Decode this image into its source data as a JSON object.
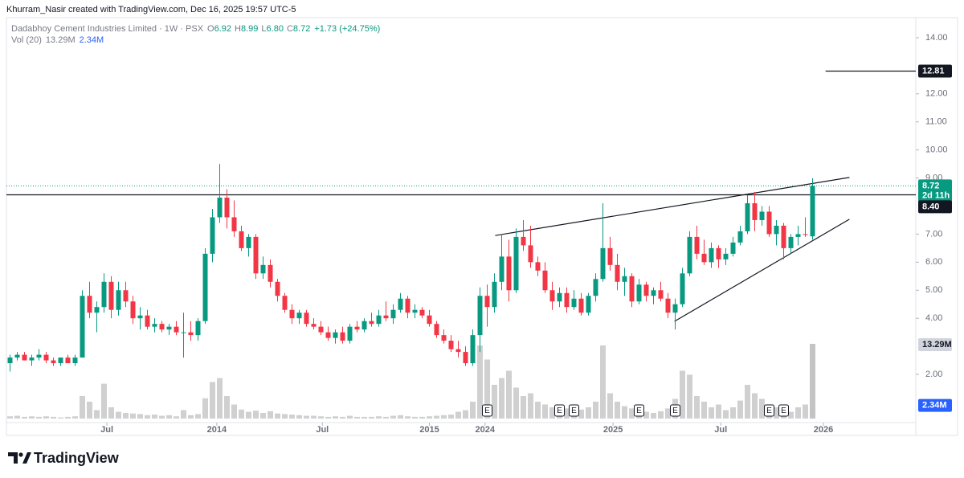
{
  "header": "Khurram_Nasir created with TradingView.com, Dec 16, 2025 19:57 UTC-5",
  "chart_data": {
    "type": "candlestick",
    "title": "Dadabhoy Cement Industries Limited · 1W · PSX",
    "legend": [
      {
        "key": "O",
        "value": "6.92"
      },
      {
        "key": "H",
        "value": "8.99"
      },
      {
        "key": "L",
        "value": "6.80"
      },
      {
        "key": "C",
        "value": "8.72"
      }
    ],
    "change": "+1.73 (+24.75%)",
    "up_color": "#089981",
    "down_color": "#f23645",
    "ohlc": [
      [
        2.4,
        2.7,
        2.1,
        2.6
      ],
      [
        2.6,
        2.8,
        2.5,
        2.7
      ],
      [
        2.7,
        2.8,
        2.5,
        2.5
      ],
      [
        2.5,
        2.7,
        2.3,
        2.6
      ],
      [
        2.6,
        2.9,
        2.5,
        2.7
      ],
      [
        2.7,
        2.8,
        2.4,
        2.5
      ],
      [
        2.5,
        2.6,
        2.3,
        2.4
      ],
      [
        2.4,
        2.6,
        2.3,
        2.6
      ],
      [
        2.6,
        2.7,
        2.4,
        2.4
      ],
      [
        2.4,
        2.7,
        2.3,
        2.6
      ],
      [
        2.6,
        5.0,
        2.6,
        4.8
      ],
      [
        4.8,
        5.3,
        4.0,
        4.2
      ],
      [
        4.2,
        4.6,
        3.5,
        4.4
      ],
      [
        4.4,
        5.6,
        4.2,
        5.3
      ],
      [
        5.3,
        5.5,
        4.0,
        4.3
      ],
      [
        4.3,
        5.3,
        4.1,
        5.0
      ],
      [
        5.0,
        5.3,
        4.4,
        4.6
      ],
      [
        4.6,
        4.8,
        3.8,
        4.0
      ],
      [
        4.0,
        4.4,
        3.6,
        4.1
      ],
      [
        4.1,
        4.3,
        3.6,
        3.7
      ],
      [
        3.7,
        4.0,
        3.5,
        3.8
      ],
      [
        3.8,
        3.9,
        3.5,
        3.6
      ],
      [
        3.6,
        3.8,
        3.4,
        3.7
      ],
      [
        3.7,
        3.9,
        3.4,
        3.5
      ],
      [
        3.5,
        4.2,
        2.6,
        3.5
      ],
      [
        3.5,
        3.9,
        3.2,
        3.4
      ],
      [
        3.4,
        4.0,
        3.2,
        3.9
      ],
      [
        3.9,
        6.5,
        3.8,
        6.3
      ],
      [
        6.3,
        7.9,
        6.0,
        7.6
      ],
      [
        7.6,
        9.5,
        7.4,
        8.3
      ],
      [
        8.3,
        8.6,
        7.2,
        7.6
      ],
      [
        7.6,
        8.2,
        6.9,
        7.1
      ],
      [
        7.1,
        7.3,
        6.4,
        6.5
      ],
      [
        6.5,
        7.0,
        6.2,
        6.9
      ],
      [
        6.9,
        7.0,
        5.4,
        5.6
      ],
      [
        5.6,
        6.2,
        5.4,
        5.9
      ],
      [
        5.9,
        6.1,
        5.1,
        5.3
      ],
      [
        5.3,
        5.4,
        4.6,
        4.8
      ],
      [
        4.8,
        4.9,
        4.2,
        4.3
      ],
      [
        4.3,
        4.5,
        3.8,
        4.0
      ],
      [
        4.0,
        4.3,
        3.8,
        4.2
      ],
      [
        4.2,
        4.3,
        3.7,
        3.8
      ],
      [
        3.8,
        4.0,
        3.6,
        3.7
      ],
      [
        3.7,
        3.9,
        3.4,
        3.5
      ],
      [
        3.5,
        3.7,
        3.2,
        3.3
      ],
      [
        3.3,
        3.6,
        3.1,
        3.5
      ],
      [
        3.5,
        3.7,
        3.1,
        3.2
      ],
      [
        3.2,
        3.8,
        3.1,
        3.7
      ],
      [
        3.7,
        3.9,
        3.5,
        3.6
      ],
      [
        3.6,
        4.0,
        3.5,
        3.9
      ],
      [
        3.9,
        4.2,
        3.7,
        3.8
      ],
      [
        3.8,
        4.3,
        3.7,
        4.1
      ],
      [
        4.1,
        4.6,
        3.9,
        4.0
      ],
      [
        4.0,
        4.5,
        3.8,
        4.3
      ],
      [
        4.3,
        4.9,
        4.2,
        4.7
      ],
      [
        4.7,
        4.8,
        4.0,
        4.2
      ],
      [
        4.2,
        4.5,
        4.0,
        4.3
      ],
      [
        4.3,
        4.4,
        4.0,
        4.1
      ],
      [
        4.1,
        4.3,
        3.7,
        3.8
      ],
      [
        3.8,
        3.9,
        3.3,
        3.4
      ],
      [
        3.4,
        3.6,
        3.1,
        3.2
      ],
      [
        3.2,
        3.4,
        2.8,
        2.9
      ],
      [
        2.9,
        3.2,
        2.6,
        2.8
      ],
      [
        2.8,
        3.0,
        2.3,
        2.4
      ],
      [
        2.4,
        3.6,
        2.3,
        3.4
      ],
      [
        3.4,
        5.1,
        2.8,
        4.8
      ],
      [
        4.8,
        5.2,
        3.7,
        4.4
      ],
      [
        4.4,
        5.6,
        4.2,
        5.3
      ],
      [
        5.3,
        7.0,
        5.0,
        6.2
      ],
      [
        6.2,
        6.8,
        4.6,
        5.0
      ],
      [
        5.0,
        7.2,
        4.9,
        6.9
      ],
      [
        6.9,
        7.5,
        6.4,
        6.6
      ],
      [
        6.6,
        7.3,
        5.8,
        6.0
      ],
      [
        6.0,
        6.2,
        5.5,
        5.7
      ],
      [
        5.7,
        6.0,
        4.9,
        5.0
      ],
      [
        5.0,
        5.3,
        4.3,
        4.6
      ],
      [
        4.6,
        5.1,
        4.4,
        4.9
      ],
      [
        4.9,
        5.1,
        4.2,
        4.4
      ],
      [
        4.4,
        5.0,
        4.3,
        4.7
      ],
      [
        4.7,
        4.9,
        4.1,
        4.2
      ],
      [
        4.2,
        4.9,
        4.1,
        4.8
      ],
      [
        4.8,
        5.6,
        4.6,
        5.4
      ],
      [
        5.4,
        8.1,
        5.3,
        6.5
      ],
      [
        6.5,
        6.9,
        5.7,
        5.9
      ],
      [
        5.9,
        6.3,
        5.0,
        5.3
      ],
      [
        5.3,
        5.8,
        4.8,
        5.5
      ],
      [
        5.5,
        5.6,
        4.4,
        4.6
      ],
      [
        4.6,
        5.4,
        4.5,
        5.2
      ],
      [
        5.2,
        5.3,
        4.6,
        4.8
      ],
      [
        4.8,
        5.1,
        4.5,
        5.0
      ],
      [
        5.0,
        5.3,
        4.6,
        4.7
      ],
      [
        4.7,
        4.9,
        4.0,
        4.2
      ],
      [
        4.2,
        4.7,
        3.6,
        4.5
      ],
      [
        4.5,
        5.8,
        4.4,
        5.6
      ],
      [
        5.6,
        7.1,
        5.5,
        6.9
      ],
      [
        6.9,
        7.3,
        6.1,
        6.3
      ],
      [
        6.3,
        6.8,
        5.9,
        6.0
      ],
      [
        6.0,
        6.7,
        5.8,
        6.5
      ],
      [
        6.5,
        6.6,
        5.8,
        6.1
      ],
      [
        6.1,
        6.5,
        5.9,
        6.3
      ],
      [
        6.3,
        6.9,
        6.2,
        6.7
      ],
      [
        6.7,
        7.3,
        6.6,
        7.1
      ],
      [
        7.1,
        8.4,
        7.0,
        8.1
      ],
      [
        8.1,
        8.5,
        7.1,
        7.5
      ],
      [
        7.5,
        8.0,
        7.3,
        7.8
      ],
      [
        7.8,
        8.0,
        6.9,
        7.0
      ],
      [
        7.0,
        7.5,
        6.6,
        7.3
      ],
      [
        7.3,
        7.4,
        6.1,
        6.5
      ],
      [
        6.5,
        7.0,
        6.3,
        6.9
      ],
      [
        6.9,
        7.3,
        6.6,
        7.0
      ],
      [
        7.0,
        7.6,
        6.9,
        6.99
      ],
      [
        6.92,
        8.99,
        6.8,
        8.72
      ]
    ],
    "volume": {
      "name": "Vol (20)",
      "color": "#c4c4c4",
      "values": [
        0.4,
        0.5,
        0.3,
        0.4,
        0.3,
        0.4,
        0.3,
        0.2,
        0.3,
        0.4,
        4.0,
        3.0,
        1.5,
        6.2,
        2.0,
        1.2,
        1.0,
        0.9,
        0.8,
        0.6,
        0.7,
        0.5,
        0.6,
        0.4,
        1.5,
        0.6,
        0.8,
        3.6,
        6.5,
        7.2,
        4.0,
        2.5,
        1.6,
        1.2,
        1.4,
        1.0,
        1.3,
        0.9,
        0.8,
        0.7,
        0.6,
        0.5,
        0.5,
        0.4,
        0.3,
        0.4,
        0.3,
        0.5,
        0.3,
        0.3,
        0.3,
        0.4,
        0.3,
        0.5,
        0.6,
        0.4,
        0.3,
        0.3,
        0.4,
        0.5,
        0.6,
        0.7,
        1.2,
        1.5,
        3.0,
        13.0,
        10.5,
        6.0,
        7.2,
        8.5,
        5.5,
        4.0,
        4.5,
        3.0,
        2.5,
        2.0,
        2.2,
        1.8,
        1.5,
        1.6,
        2.0,
        3.0,
        13.0,
        4.5,
        3.0,
        2.2,
        1.8,
        1.5,
        1.2,
        1.0,
        1.3,
        1.8,
        3.5,
        8.5,
        7.8,
        4.0,
        3.0,
        2.0,
        2.5,
        1.5,
        2.0,
        3.2,
        6.0,
        4.5,
        3.5,
        2.5,
        2.0,
        1.5,
        1.2,
        2.0,
        2.5,
        13.29
      ],
      "value_label_last": "13.29M",
      "ylim": [
        0,
        13.29
      ],
      "ma": 2.34,
      "ma_label": "2.34M",
      "ma_color": "#2962ff"
    },
    "ylim": [
      0.3,
      14.5
    ],
    "yticks": [
      {
        "value": 2,
        "label": "2.00"
      },
      {
        "value": 4,
        "label": "4.00"
      },
      {
        "value": 5,
        "label": "5.00"
      },
      {
        "value": 6,
        "label": "6.00"
      },
      {
        "value": 7,
        "label": "7.00"
      },
      {
        "value": 9,
        "label": "9.00"
      },
      {
        "value": 10,
        "label": "10.00"
      },
      {
        "value": 11,
        "label": "11.00"
      },
      {
        "value": 12,
        "label": "12.00"
      },
      {
        "value": 14,
        "label": "14.00"
      }
    ],
    "xticks": [
      {
        "value": 13.4,
        "label": "Jul"
      },
      {
        "value": 28.6,
        "label": "2014"
      },
      {
        "value": 43.2,
        "label": "Jul"
      },
      {
        "value": 58,
        "label": "2015"
      },
      {
        "value": 65.7,
        "label": "2024"
      },
      {
        "value": 83.4,
        "label": "2025"
      },
      {
        "value": 98.3,
        "label": "Jul"
      },
      {
        "value": 112.5,
        "label": "2026"
      }
    ],
    "levels": [
      {
        "value": 12.81,
        "start": 112.8
      },
      {
        "value": 8.4,
        "label": "8.40"
      }
    ],
    "countdown": "2d 11h",
    "trendlines": [
      {
        "x": [
          67.1,
          116.1
        ],
        "y": [
          6.95,
          9.02
        ]
      },
      {
        "x": [
          91.9,
          116.1
        ],
        "y": [
          3.89,
          7.53
        ]
      }
    ],
    "earnings": {
      "label": "E",
      "at": [
        66,
        76,
        78,
        87,
        92,
        105,
        107
      ]
    }
  },
  "brand": "TradingView"
}
